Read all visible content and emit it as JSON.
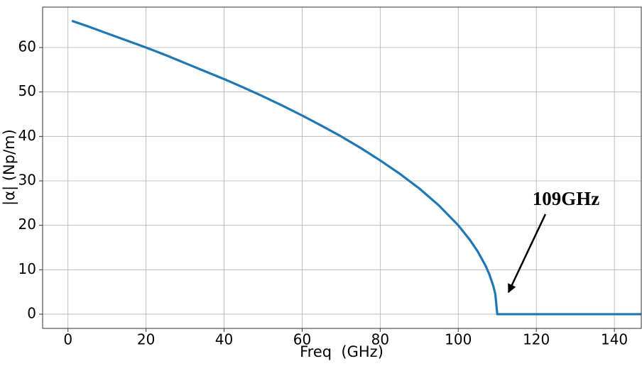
{
  "chart_data": {
    "type": "line",
    "xlabel": "Freq  (GHz)",
    "ylabel": "|α| (Np/m)",
    "annotation": "109GHz",
    "x": [
      1,
      5,
      10,
      15,
      20,
      25,
      30,
      35,
      40,
      45,
      50,
      55,
      60,
      65,
      70,
      75,
      80,
      85,
      90,
      95,
      100,
      103,
      105,
      107,
      108,
      109,
      109.5,
      110,
      120,
      130,
      140,
      147
    ],
    "series": [
      {
        "name": "|α|",
        "color": "#1f77b4",
        "values": [
          66.0,
          64.8,
          63.2,
          61.6,
          60.0,
          58.3,
          56.5,
          54.7,
          52.9,
          51.0,
          49.0,
          46.9,
          44.7,
          42.4,
          40.0,
          37.4,
          34.6,
          31.6,
          28.3,
          24.5,
          20.0,
          16.7,
          14.1,
          10.9,
          8.9,
          6.3,
          4.5,
          0,
          0,
          0,
          0,
          0
        ]
      }
    ],
    "xlim": [
      -6.5,
      146.9
    ],
    "ylim": [
      -3.2,
      69.1
    ],
    "xticks": [
      0,
      20,
      40,
      60,
      80,
      100,
      120,
      140
    ],
    "yticks": [
      0,
      10,
      20,
      30,
      40,
      50,
      60
    ],
    "grid": true
  }
}
